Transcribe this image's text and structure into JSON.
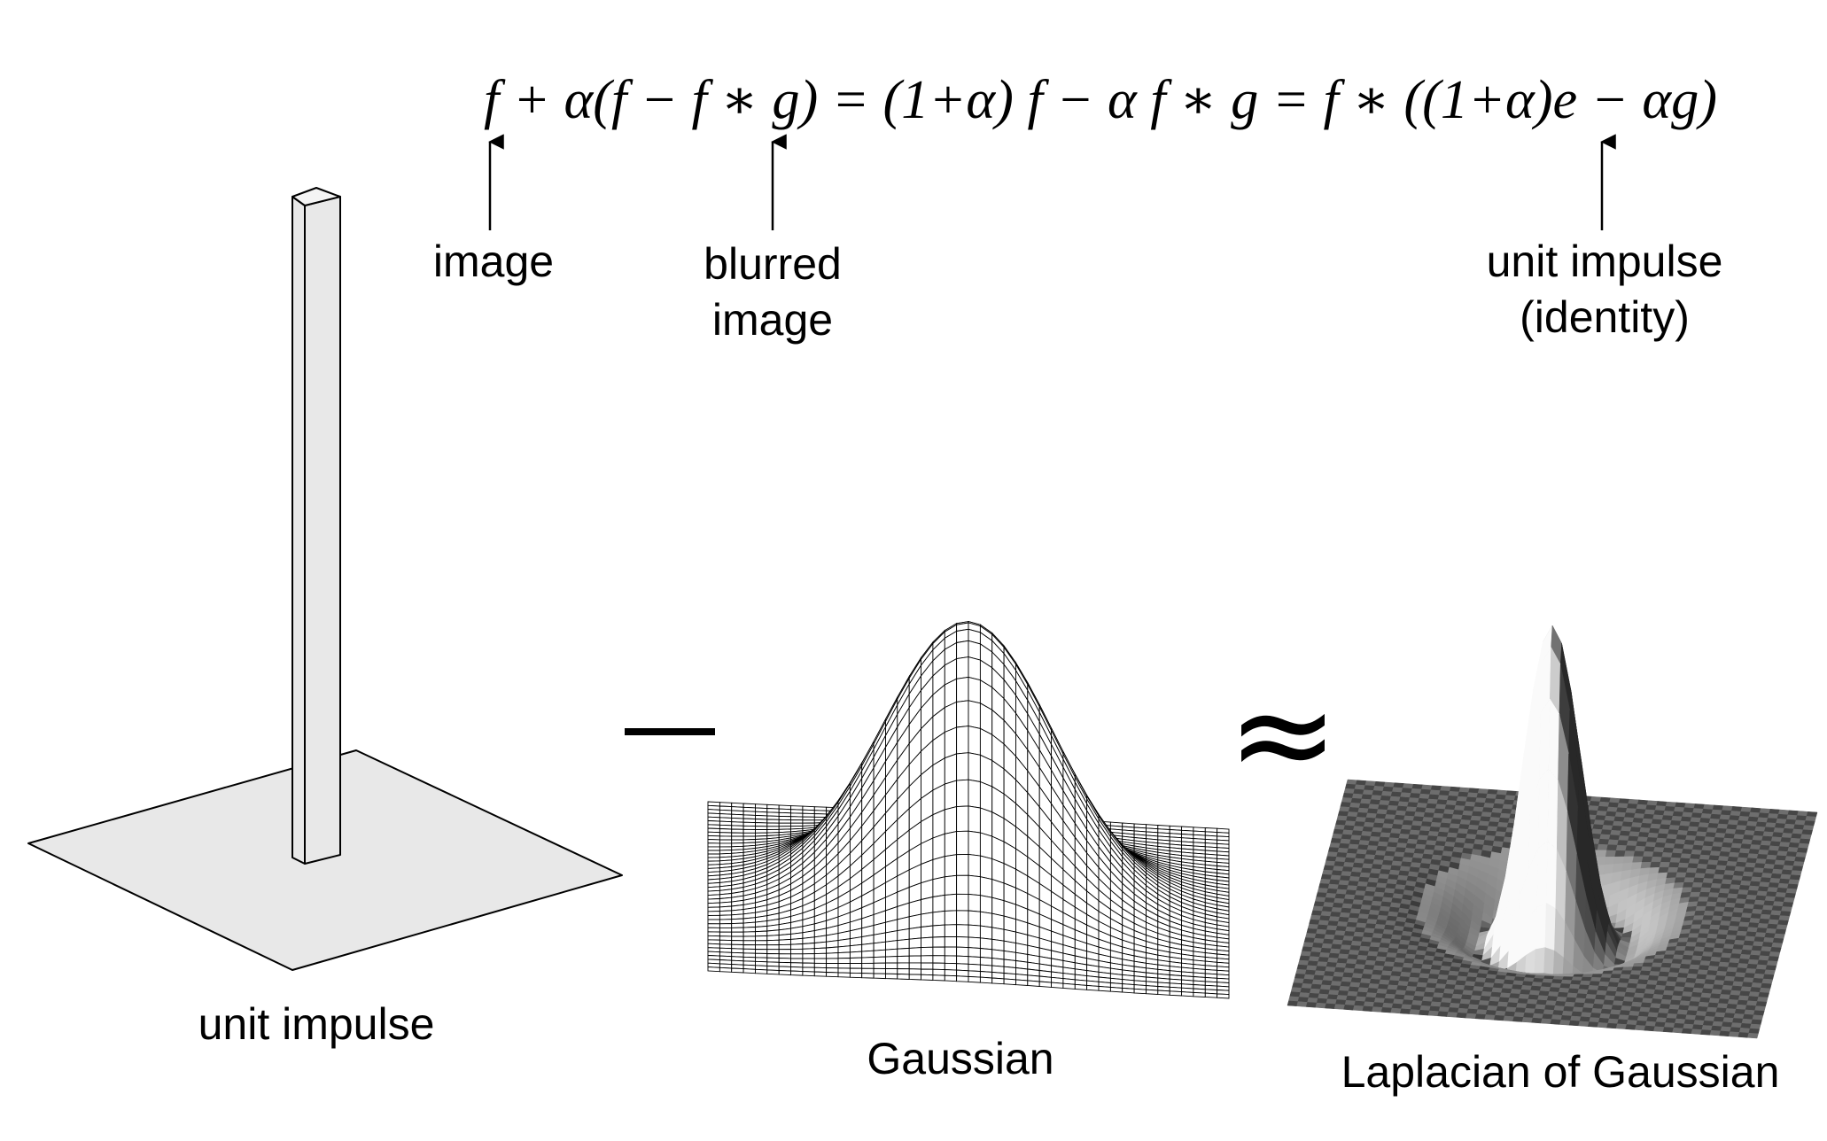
{
  "equation": "f + α(f − f ∗ g) = (1+α) f − α f ∗ g = f ∗ ((1+α)e − αg)",
  "annotations": {
    "image": "image",
    "blurred_image": [
      "blurred",
      "image"
    ],
    "unit_impulse_identity": [
      "unit impulse",
      "(identity)"
    ]
  },
  "panels": {
    "unit_impulse": "unit impulse",
    "gaussian": "Gaussian",
    "laplacian": "Laplacian of Gaussian"
  },
  "operators": {
    "approx": "≈"
  }
}
